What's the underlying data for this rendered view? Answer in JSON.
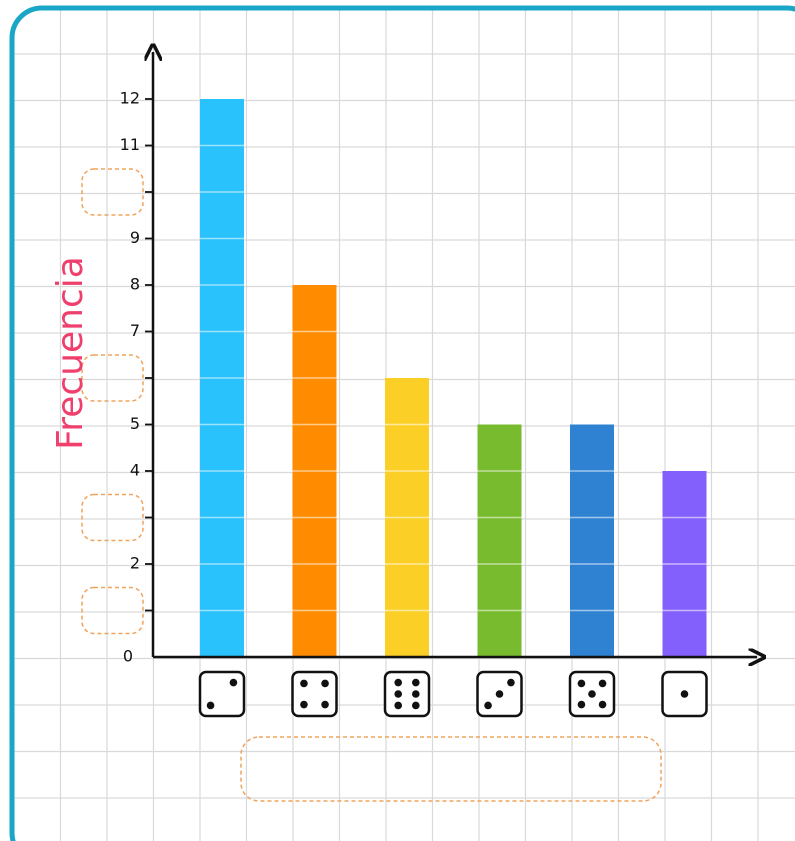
{
  "colors": {
    "frame": "#1aa7c7",
    "grid": "#d9d9d9",
    "axis": "#111111",
    "ylabel": "#ef3f6d",
    "blank": "#f0a35c"
  },
  "chart_data": {
    "type": "bar",
    "ylabel": "Frecuencia",
    "xlabel": "",
    "ylim": [
      0,
      12.5
    ],
    "y_tick_labels": [
      {
        "value": 0,
        "label": "0"
      },
      {
        "value": 2,
        "label": "2"
      },
      {
        "value": 4,
        "label": "4"
      },
      {
        "value": 5,
        "label": "5"
      },
      {
        "value": 7,
        "label": "7"
      },
      {
        "value": 8,
        "label": "8"
      },
      {
        "value": 9,
        "label": "9"
      },
      {
        "value": 11,
        "label": "11"
      },
      {
        "value": 12,
        "label": "12"
      }
    ],
    "y_blank_ticks": [
      1,
      3,
      6,
      10
    ],
    "categories": [
      "2",
      "4",
      "6",
      "3",
      "5",
      "1"
    ],
    "category_icons": [
      "die-face-2-icon",
      "die-face-4-icon",
      "die-face-6-icon",
      "die-face-3-icon",
      "die-face-5-icon",
      "die-face-1-icon"
    ],
    "values": [
      12,
      8,
      6,
      5,
      5,
      4
    ],
    "bar_colors": [
      "#29c2fd",
      "#ff8c00",
      "#fccf27",
      "#78bb2e",
      "#2f82d2",
      "#8360fb"
    ],
    "grid": true
  }
}
